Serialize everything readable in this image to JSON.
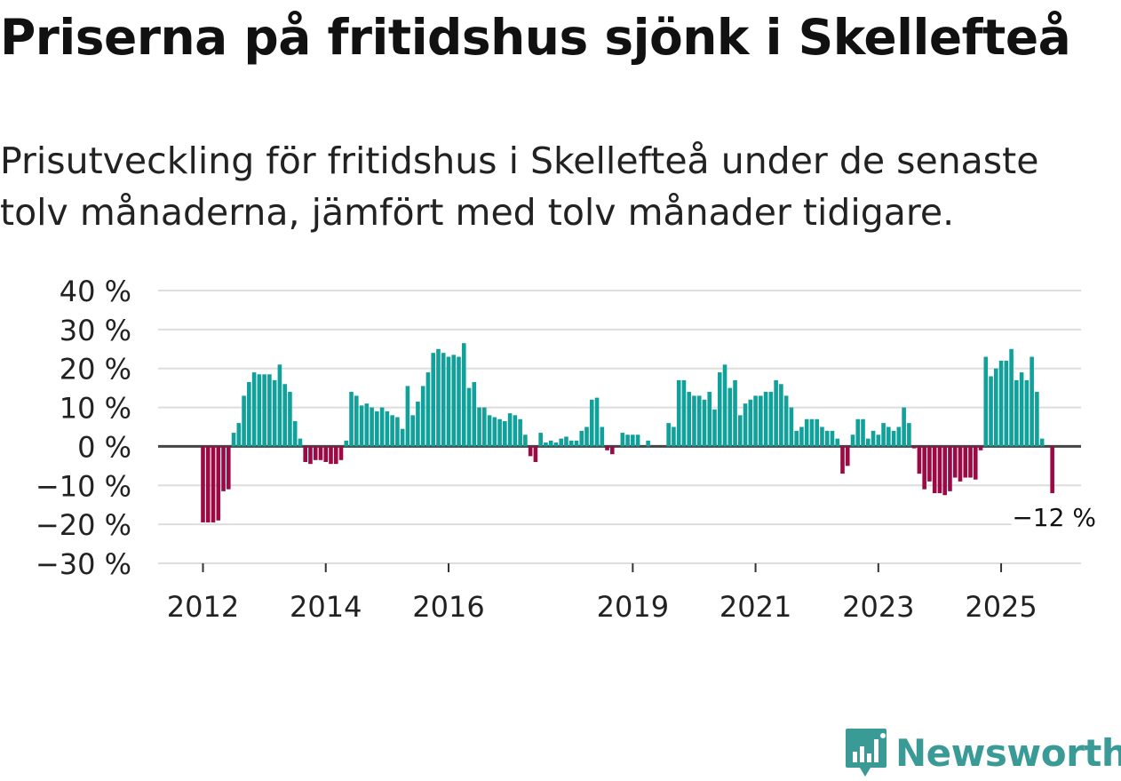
{
  "title": "Priserna på fritidshus sjönk i Skellefteå",
  "subtitle": "Prisutveckling för fritidshus i Skellefteå under de senaste tolv månaderna, jämfört med tolv månader tidigare.",
  "brand": {
    "name": "Newsworthy",
    "icon": "newsworthy-logo-icon",
    "color": "#3a9a96"
  },
  "colors": {
    "positive": "#0fa19a",
    "negative": "#9b0a45",
    "grid": "#dddddd",
    "zero": "#444444"
  },
  "chart_data": {
    "type": "bar",
    "title": "Priserna på fritidshus sjönk i Skellefteå",
    "xlabel": "",
    "ylabel": "",
    "unit": "%",
    "ylim": [
      -30,
      40
    ],
    "yticks": [
      40,
      30,
      20,
      10,
      0,
      -10,
      -20,
      -30
    ],
    "ytick_labels": [
      "40 %",
      "30 %",
      "20 %",
      "10 %",
      "0 %",
      "−10 %",
      "−20 %",
      "−30 %"
    ],
    "xticks": [
      {
        "label": "2012",
        "index": 0
      },
      {
        "label": "2014",
        "index": 24
      },
      {
        "label": "2016",
        "index": 48
      },
      {
        "label": "2019",
        "index": 84
      },
      {
        "label": "2021",
        "index": 108
      },
      {
        "label": "2023",
        "index": 132
      },
      {
        "label": "2025",
        "index": 156
      }
    ],
    "series": [
      {
        "name": "Prisutveckling",
        "start": "2012-01",
        "frequency": "monthly",
        "values": [
          -19.5,
          -19.5,
          -19.5,
          -19,
          -11.5,
          -11,
          3.5,
          6,
          13,
          16.5,
          19,
          18.5,
          18.5,
          18.5,
          17,
          21,
          16,
          14,
          6.5,
          2,
          -4,
          -4.5,
          -3.5,
          -3.5,
          -4,
          -4.5,
          -4.5,
          -3.5,
          1.5,
          14,
          13,
          10.5,
          11,
          10,
          9,
          10,
          9,
          8,
          7.5,
          4.5,
          15.5,
          8,
          11.5,
          15.5,
          19,
          24,
          25,
          24,
          23,
          23.5,
          23,
          26.5,
          15,
          16.5,
          10,
          10,
          8,
          7.5,
          7,
          6.5,
          8.5,
          8,
          7,
          3,
          -2.5,
          -4,
          3.5,
          1,
          1.5,
          1,
          2,
          2.5,
          1.5,
          1.5,
          4,
          5,
          12,
          12.5,
          5,
          -1,
          -2,
          0,
          3.5,
          3,
          3,
          3,
          0,
          1.5,
          0,
          0,
          0,
          6,
          5,
          17,
          17,
          14,
          13,
          13,
          12,
          14,
          9.5,
          19,
          21,
          15,
          17,
          8,
          11,
          12,
          13,
          13,
          14,
          14,
          17,
          16,
          13,
          10,
          4,
          5,
          7,
          7,
          7,
          5,
          4,
          4,
          2,
          -7,
          -5,
          3,
          7,
          7,
          2,
          4,
          3,
          6,
          5,
          4,
          5,
          10,
          6,
          -0.5,
          -7,
          -11,
          -9,
          -12,
          -12,
          -12.5,
          -11.5,
          -8,
          -9,
          -8,
          -8,
          -8.5,
          -1,
          23,
          18,
          20,
          22,
          22,
          25,
          17,
          19,
          17,
          23,
          14,
          2,
          0,
          -12
        ]
      }
    ],
    "annotation": {
      "text": "−12 %",
      "index": 166,
      "value": -12
    }
  }
}
